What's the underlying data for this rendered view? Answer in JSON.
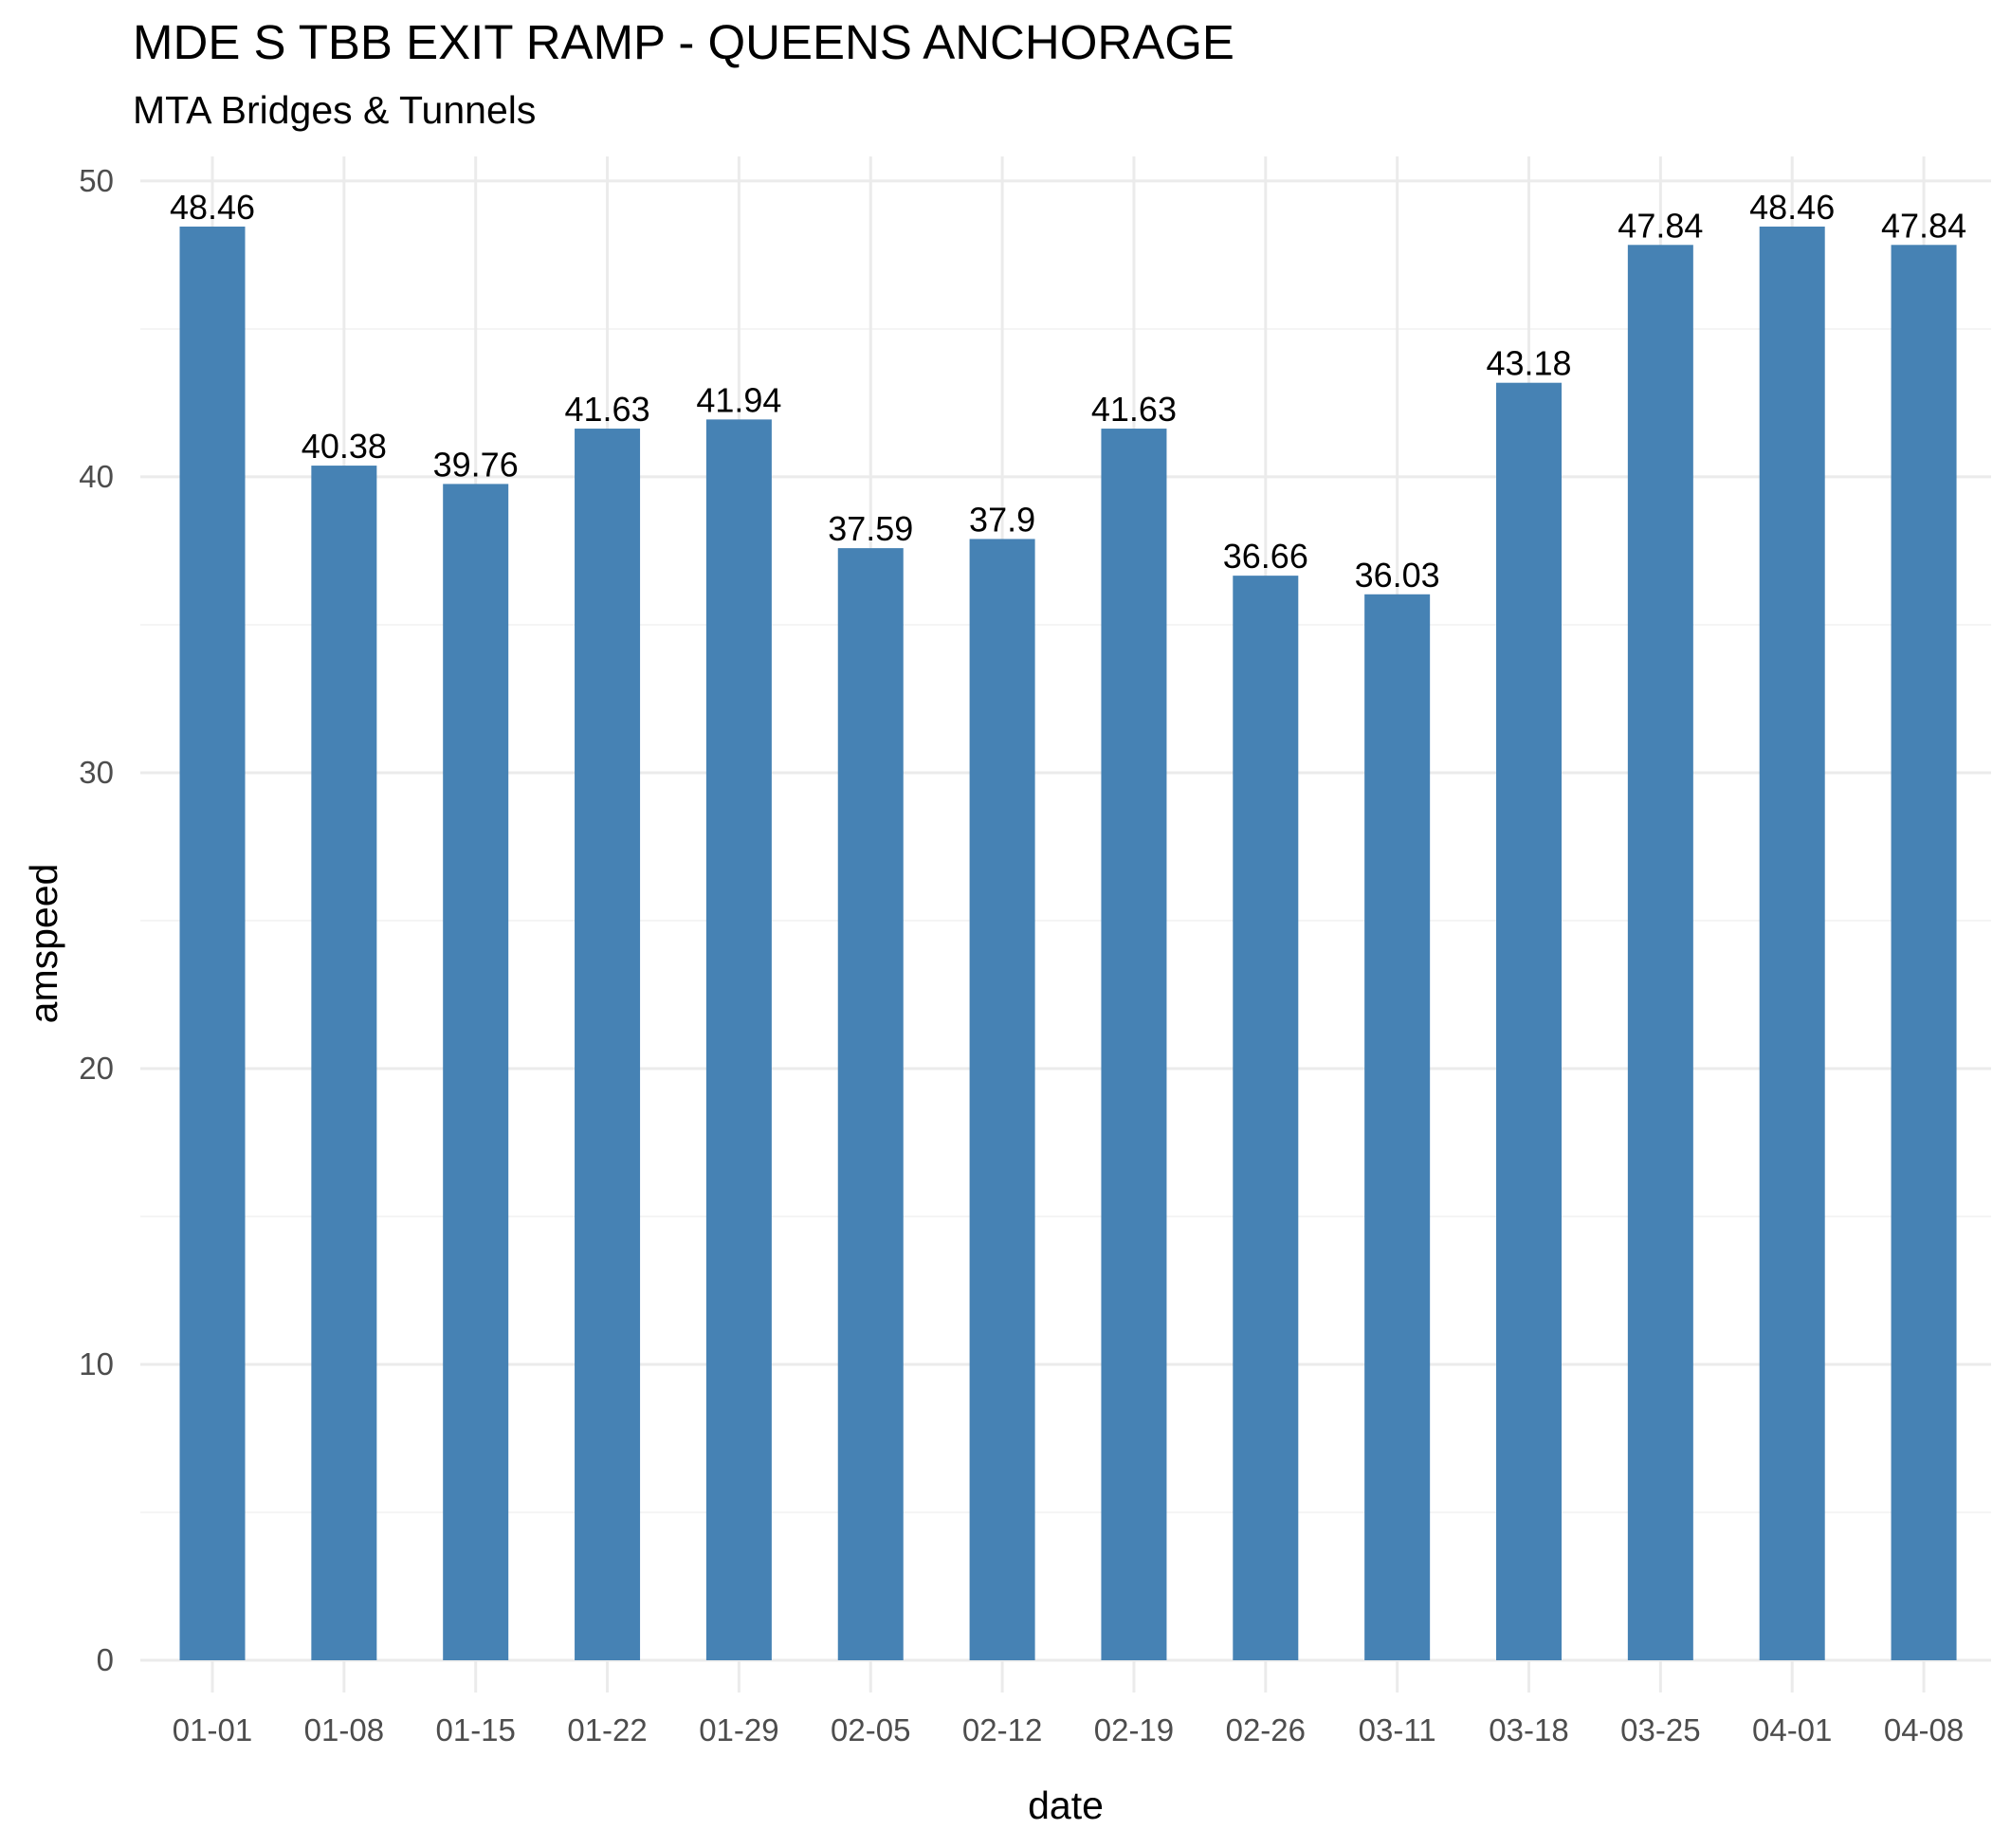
{
  "chart_data": {
    "type": "bar",
    "title": "MDE S TBB EXIT RAMP - QUEENS ANCHORAGE",
    "subtitle": "MTA Bridges & Tunnels",
    "xlabel": "date",
    "ylabel": "amspeed",
    "categories": [
      "01-01",
      "01-08",
      "01-15",
      "01-22",
      "01-29",
      "02-05",
      "02-12",
      "02-19",
      "02-26",
      "03-11",
      "03-18",
      "03-25",
      "04-01",
      "04-08"
    ],
    "values": [
      48.46,
      40.38,
      39.76,
      41.63,
      41.94,
      37.59,
      37.9,
      41.63,
      36.66,
      36.03,
      43.18,
      47.84,
      48.46,
      47.84
    ],
    "data_labels": [
      "48.46",
      "40.38",
      "39.76",
      "41.63",
      "41.94",
      "37.59",
      "37.9",
      "41.63",
      "36.66",
      "36.03",
      "43.18",
      "47.84",
      "48.46",
      "47.84"
    ],
    "yticks": [
      0,
      10,
      20,
      30,
      40,
      50
    ],
    "ylim": [
      0,
      50
    ],
    "grid": true,
    "legend": "none",
    "bar_color": "#4682b4"
  }
}
